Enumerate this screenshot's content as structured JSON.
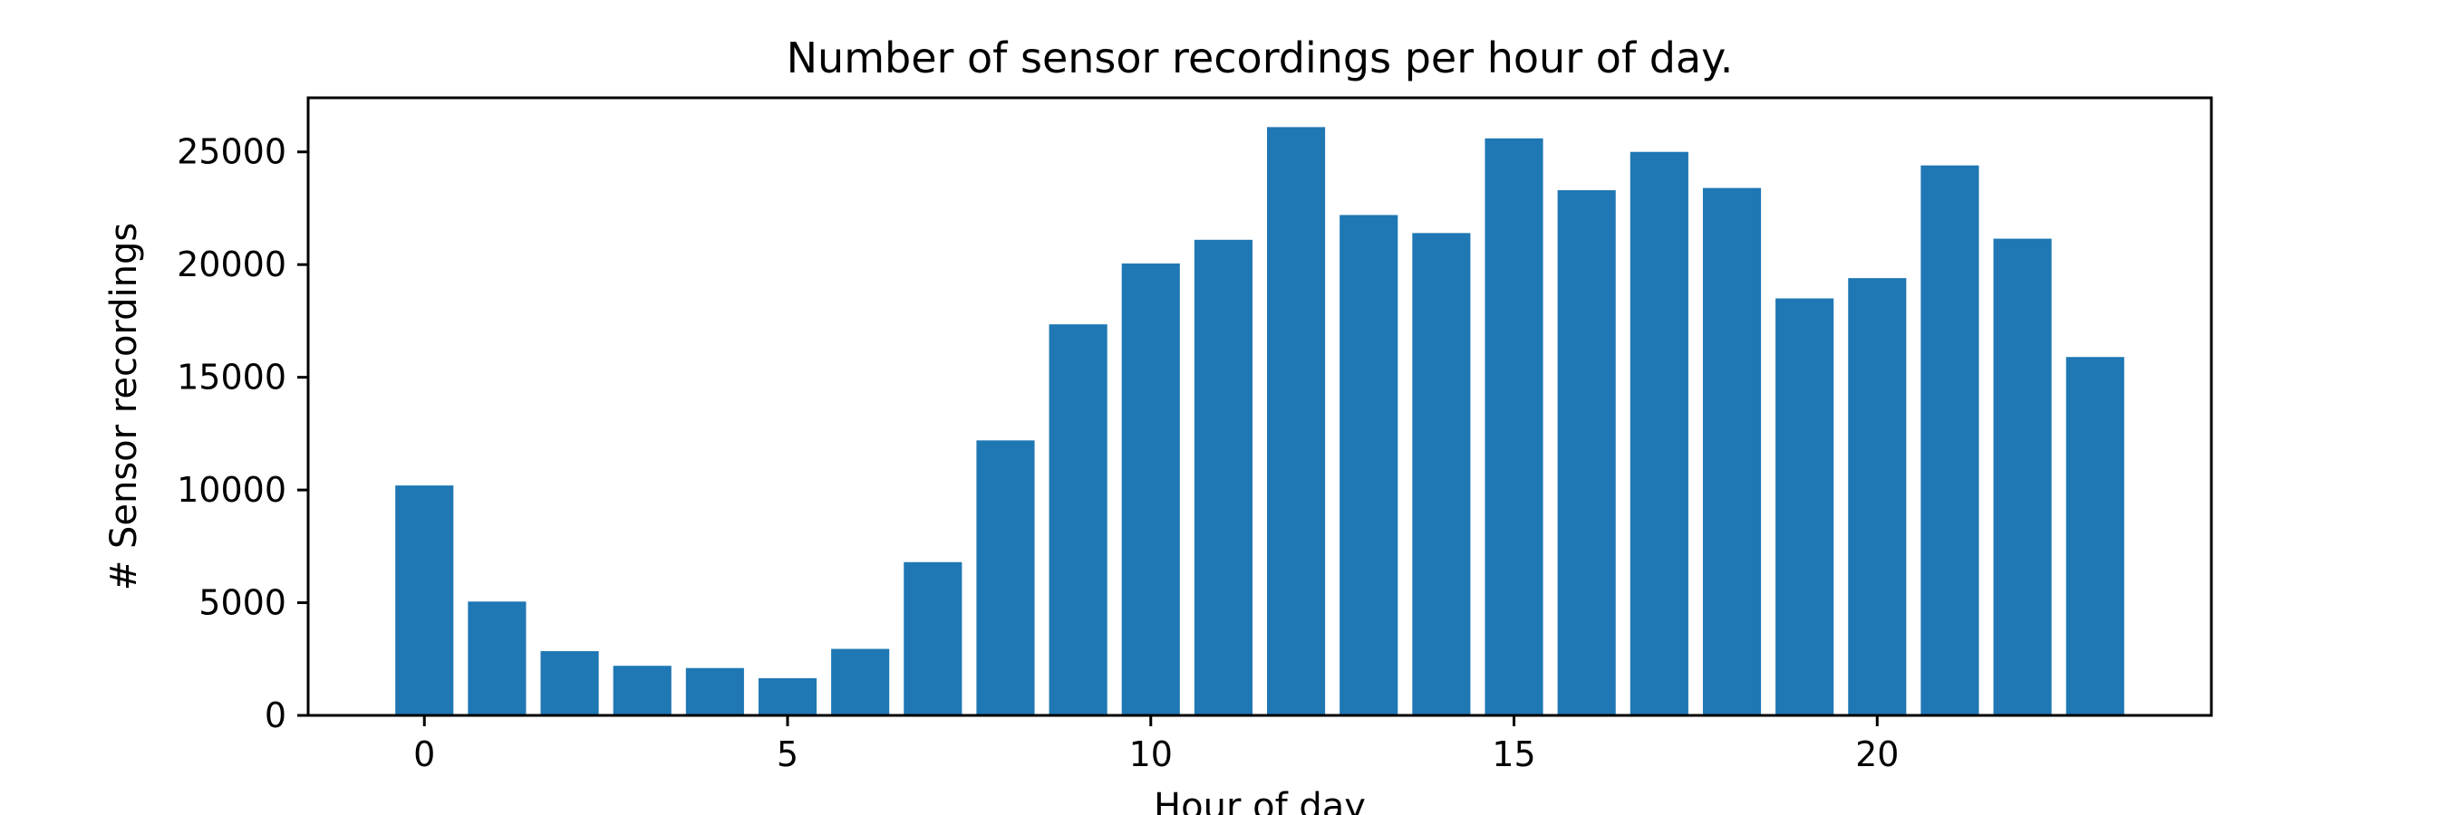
{
  "chart_data": {
    "type": "bar",
    "title": "Number of sensor recordings per hour of day.",
    "xlabel": "Hour of day",
    "ylabel": "# Sensor recordings",
    "categories": [
      0,
      1,
      2,
      3,
      4,
      5,
      6,
      7,
      8,
      9,
      10,
      11,
      12,
      13,
      14,
      15,
      16,
      17,
      18,
      19,
      20,
      21,
      22,
      23
    ],
    "values": [
      10200,
      5050,
      2850,
      2200,
      2100,
      1650,
      2950,
      6800,
      12200,
      17350,
      20050,
      21100,
      26100,
      22200,
      21400,
      25600,
      23300,
      25000,
      23400,
      18500,
      19400,
      24400,
      21150,
      15900
    ],
    "xlim": [
      -1.6,
      24.6
    ],
    "ylim": [
      0,
      27400
    ],
    "xticks": [
      0,
      5,
      10,
      15,
      20
    ],
    "yticks": [
      0,
      5000,
      10000,
      15000,
      20000,
      25000
    ],
    "bar_color": "#1f77b4",
    "grid": false,
    "legend": false
  }
}
